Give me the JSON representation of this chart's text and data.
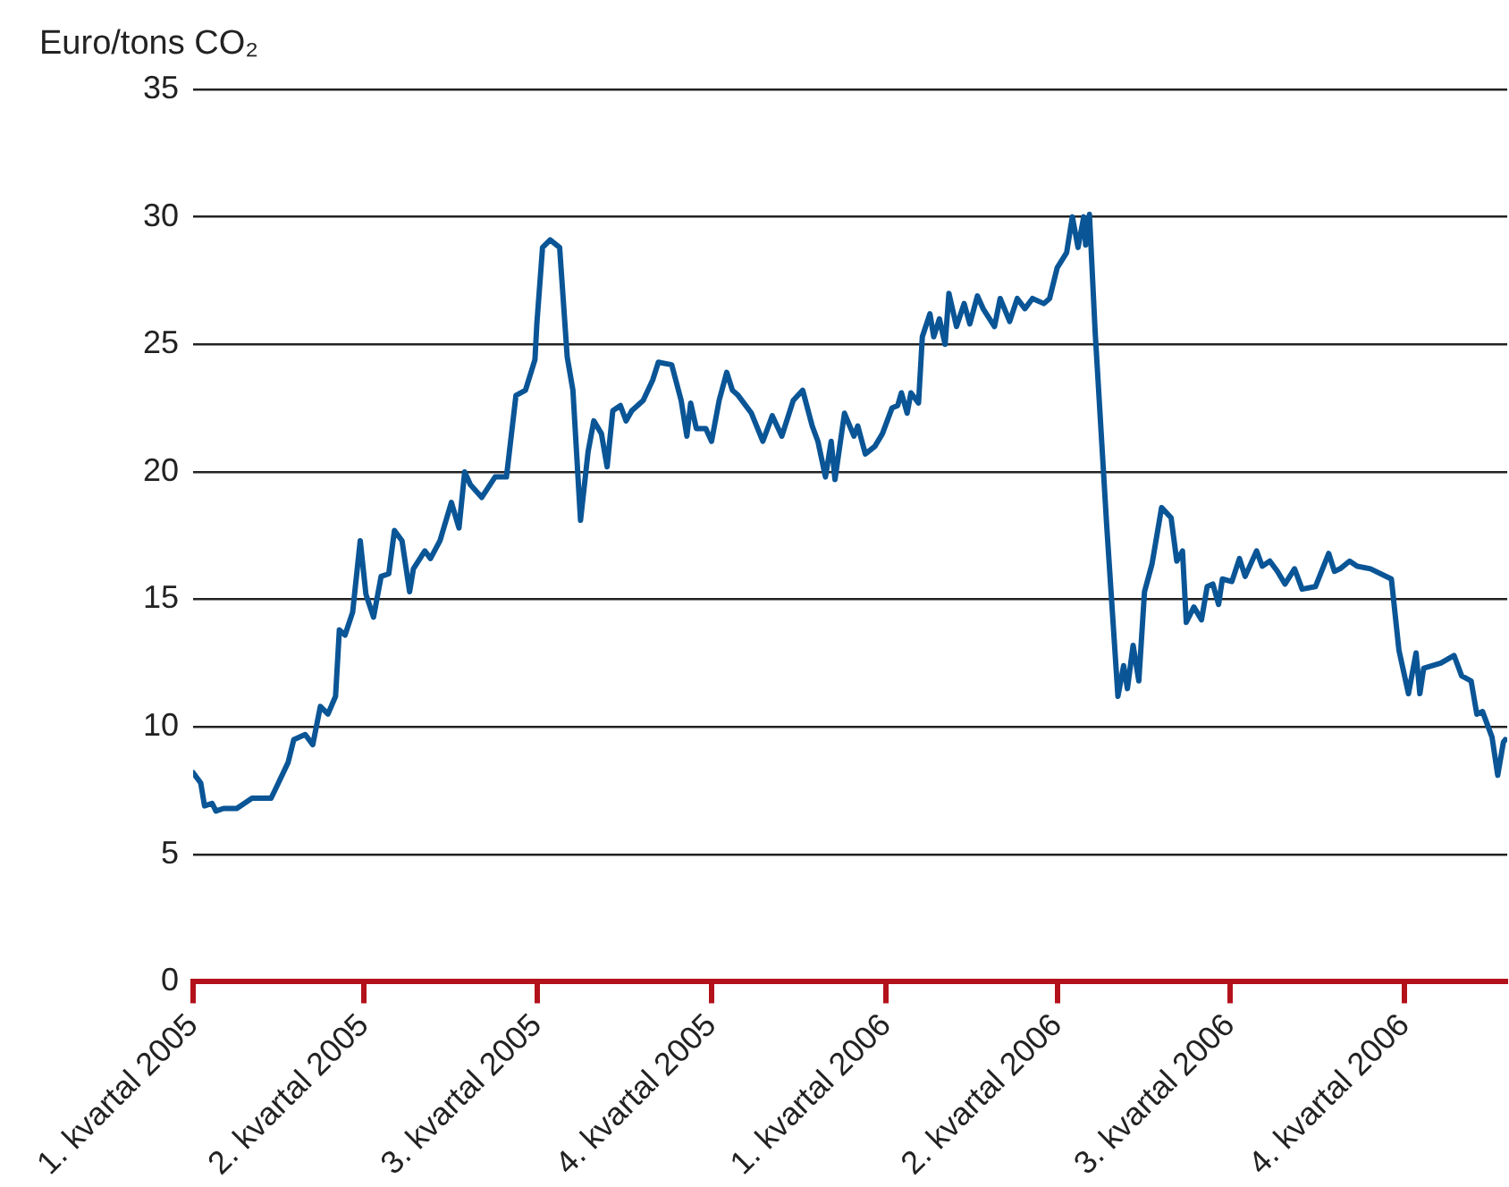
{
  "chart_data": {
    "type": "line",
    "ylabel": "Euro/tons CO₂",
    "color": "#0a5596",
    "grid": "y",
    "marker": "none",
    "line_style": "solid",
    "x": [
      "2005-01-01",
      "2005-01-05",
      "2005-01-07",
      "2005-01-11",
      "2005-01-13",
      "2005-01-17",
      "2005-01-24",
      "2005-02-01",
      "2005-02-11",
      "2005-02-13",
      "2005-02-20",
      "2005-02-23",
      "2005-03-01",
      "2005-03-05",
      "2005-03-09",
      "2005-03-13",
      "2005-03-17",
      "2005-03-19",
      "2005-03-22",
      "2005-03-26",
      "2005-03-30",
      "2005-04-02",
      "2005-04-06",
      "2005-04-10",
      "2005-04-14",
      "2005-04-17",
      "2005-04-21",
      "2005-04-25",
      "2005-04-27",
      "2005-05-03",
      "2005-05-06",
      "2005-05-11",
      "2005-05-17",
      "2005-05-21",
      "2005-05-24",
      "2005-05-27",
      "2005-06-02",
      "2005-06-09",
      "2005-06-15",
      "2005-06-20",
      "2005-06-25",
      "2005-06-30",
      "2005-07-01",
      "2005-07-04",
      "2005-07-08",
      "2005-07-13",
      "2005-07-17",
      "2005-07-20",
      "2005-07-24",
      "2005-07-28",
      "2005-07-31",
      "2005-08-04",
      "2005-08-07",
      "2005-08-10",
      "2005-08-14",
      "2005-08-17",
      "2005-08-20",
      "2005-08-23",
      "2005-08-26",
      "2005-08-31",
      "2005-09-03",
      "2005-09-10",
      "2005-09-15",
      "2005-09-18",
      "2005-09-20",
      "2005-09-23",
      "2005-09-28",
      "2005-10-01",
      "2005-10-05",
      "2005-10-09",
      "2005-10-12",
      "2005-10-15",
      "2005-10-22",
      "2005-10-28",
      "2005-11-02",
      "2005-11-07",
      "2005-11-13",
      "2005-11-18",
      "2005-11-23",
      "2005-11-26",
      "2005-11-30",
      "2005-12-03",
      "2005-12-05",
      "2005-12-10",
      "2005-12-15",
      "2005-12-17",
      "2005-12-21",
      "2005-12-26",
      "2005-12-30",
      "2006-01-04",
      "2006-01-07",
      "2006-01-09",
      "2006-01-12",
      "2006-01-14",
      "2006-01-18",
      "2006-01-20",
      "2006-01-24",
      "2006-01-26",
      "2006-01-29",
      "2006-02-01",
      "2006-02-03",
      "2006-02-07",
      "2006-02-11",
      "2006-02-14",
      "2006-02-18",
      "2006-02-21",
      "2006-02-27",
      "2006-03-02",
      "2006-03-07",
      "2006-03-11",
      "2006-03-15",
      "2006-03-19",
      "2006-03-25",
      "2006-03-28",
      "2006-04-01",
      "2006-04-06",
      "2006-04-09",
      "2006-04-12",
      "2006-04-15",
      "2006-04-16",
      "2006-04-18",
      "2006-04-21",
      "2006-04-27",
      "2006-05-03",
      "2006-05-06",
      "2006-05-08",
      "2006-05-11",
      "2006-05-14",
      "2006-05-17",
      "2006-05-21",
      "2006-05-26",
      "2006-05-31",
      "2006-06-03",
      "2006-06-06",
      "2006-06-08",
      "2006-06-12",
      "2006-06-16",
      "2006-06-19",
      "2006-06-22",
      "2006-06-25",
      "2006-06-27",
      "2006-07-02",
      "2006-07-06",
      "2006-07-09",
      "2006-07-15",
      "2006-07-18",
      "2006-07-22",
      "2006-07-26",
      "2006-07-30",
      "2006-08-04",
      "2006-08-08",
      "2006-08-15",
      "2006-08-22",
      "2006-08-25",
      "2006-08-28",
      "2006-09-02",
      "2006-09-06",
      "2006-09-13",
      "2006-09-24",
      "2006-09-28",
      "2006-10-03",
      "2006-10-07",
      "2006-10-09",
      "2006-10-11",
      "2006-10-20",
      "2006-10-27",
      "2006-10-31",
      "2006-11-05",
      "2006-11-08",
      "2006-11-11",
      "2006-11-16",
      "2006-11-19",
      "2006-11-22",
      "2006-11-23"
    ],
    "values": [
      8.2,
      7.8,
      6.9,
      7.0,
      6.7,
      6.8,
      6.8,
      7.2,
      7.2,
      7.5,
      8.6,
      9.5,
      9.7,
      9.3,
      10.8,
      10.5,
      11.2,
      13.8,
      13.6,
      14.5,
      17.3,
      15.2,
      14.3,
      15.9,
      16.0,
      17.7,
      17.3,
      15.3,
      16.2,
      16.9,
      16.6,
      17.3,
      18.8,
      17.8,
      20.0,
      19.5,
      19.0,
      19.8,
      19.8,
      23.0,
      23.2,
      24.4,
      25.8,
      28.8,
      29.1,
      28.8,
      24.5,
      23.2,
      18.1,
      20.8,
      22.0,
      21.5,
      20.2,
      22.4,
      22.6,
      22.0,
      22.4,
      22.6,
      22.8,
      23.6,
      24.3,
      24.2,
      22.8,
      21.4,
      22.7,
      21.7,
      21.7,
      21.2,
      22.8,
      23.9,
      23.2,
      23.0,
      22.3,
      21.2,
      22.2,
      21.4,
      22.8,
      23.2,
      21.8,
      21.2,
      19.8,
      21.2,
      19.7,
      22.3,
      21.4,
      21.8,
      20.7,
      21.0,
      21.5,
      22.5,
      22.6,
      23.1,
      22.3,
      23.1,
      22.7,
      25.3,
      26.2,
      25.3,
      26.0,
      25.0,
      27.0,
      25.7,
      26.6,
      25.8,
      26.9,
      26.4,
      25.7,
      26.8,
      25.9,
      26.8,
      26.4,
      26.8,
      26.6,
      26.8,
      28.0,
      28.6,
      30.0,
      28.8,
      30.0,
      28.9,
      30.1,
      25.5,
      18.0,
      11.2,
      12.4,
      11.5,
      13.2,
      11.8,
      15.3,
      16.4,
      18.6,
      18.2,
      16.5,
      16.9,
      14.1,
      14.7,
      14.2,
      15.5,
      15.6,
      14.8,
      15.8,
      15.7,
      16.6,
      15.9,
      16.9,
      16.3,
      16.5,
      16.1,
      15.6,
      16.2,
      15.4,
      15.5,
      16.8,
      16.1,
      16.2,
      16.5,
      16.3,
      16.2,
      15.8,
      13.0,
      11.3,
      12.9,
      11.3,
      12.3,
      12.5,
      12.8,
      12.0,
      11.8,
      10.5,
      10.6,
      9.6,
      8.1,
      9.4,
      9.5
    ],
    "xlim": [
      "2005-01-01",
      "2006-11-24"
    ],
    "xticks": [
      {
        "value": "2005-01-01",
        "label": "1. kvartal 2005"
      },
      {
        "value": "2005-04-01",
        "label": "2. kvartal 2005"
      },
      {
        "value": "2005-07-01",
        "label": "3. kvartal 2005"
      },
      {
        "value": "2005-10-01",
        "label": "4. kvartal 2005"
      },
      {
        "value": "2006-01-01",
        "label": "1. kvartal 2006"
      },
      {
        "value": "2006-04-01",
        "label": "2. kvartal 2006"
      },
      {
        "value": "2006-07-01",
        "label": "3. kvartal 2006"
      },
      {
        "value": "2006-10-01",
        "label": "4. kvartal 2006"
      }
    ],
    "ylim": [
      0,
      35
    ],
    "yticks": [
      0,
      5,
      10,
      15,
      20,
      25,
      30,
      35
    ]
  }
}
